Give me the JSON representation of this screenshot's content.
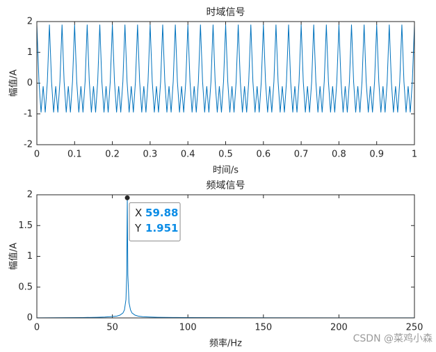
{
  "chart_data": [
    {
      "type": "line",
      "title": "时域信号",
      "xlabel": "时间/s",
      "ylabel": "幅值/A",
      "xlim": [
        0,
        1
      ],
      "ylim": [
        -2,
        2
      ],
      "xticks": [
        0,
        0.1,
        0.2,
        0.3,
        0.4,
        0.5,
        0.6,
        0.7,
        0.8,
        0.9,
        1
      ],
      "yticks": [
        -2,
        -1,
        0,
        1,
        2
      ],
      "x": [
        0,
        0.0056,
        0.0111,
        0.0167,
        0.0222,
        0.0278,
        0.0333,
        0.0389,
        0.0444,
        0.05,
        0.0556,
        0.0611,
        0.0667,
        0.0722,
        0.0778,
        0.0833,
        0.0889,
        0.0944,
        0.1,
        0.1056,
        0.1111,
        0.1167,
        0.1222,
        0.1278,
        0.1333,
        0.1389,
        0.1444,
        0.15,
        0.1556,
        0.1611,
        0.1667,
        0.1722,
        0.1778,
        0.1833,
        0.1889,
        0.1944,
        0.2,
        0.2056,
        0.2111,
        0.2167,
        0.2222,
        0.2278,
        0.2333,
        0.2389,
        0.2444,
        0.25,
        0.2556,
        0.2611,
        0.2667,
        0.2722,
        0.2778,
        0.2833,
        0.2889,
        0.2944,
        0.3,
        0.3056,
        0.3111,
        0.3167,
        0.3222,
        0.3278,
        0.3333,
        0.3389,
        0.3444,
        0.35,
        0.3556,
        0.3611,
        0.3667,
        0.3722,
        0.3778,
        0.3833,
        0.3889,
        0.3944,
        0.4,
        0.4056,
        0.4111,
        0.4167,
        0.4222,
        0.4278,
        0.4333,
        0.4389,
        0.4444,
        0.45,
        0.4556,
        0.4611,
        0.4667,
        0.4722,
        0.4778,
        0.4833,
        0.4889,
        0.4944,
        0.5,
        0.5056,
        0.5111,
        0.5167,
        0.5222,
        0.5278,
        0.5333,
        0.5389,
        0.5444,
        0.55,
        0.5556,
        0.5611,
        0.5667,
        0.5722,
        0.5778,
        0.5833,
        0.5889,
        0.5944,
        0.6,
        0.6056,
        0.6111,
        0.6167,
        0.6222,
        0.6278,
        0.6333,
        0.6389,
        0.6444,
        0.65,
        0.6556,
        0.6611,
        0.6667,
        0.6722,
        0.6778,
        0.6833,
        0.6889,
        0.6944,
        0.7,
        0.7056,
        0.7111,
        0.7167,
        0.7222,
        0.7278,
        0.7333,
        0.7389,
        0.7444,
        0.75,
        0.7556,
        0.7611,
        0.7667,
        0.7722,
        0.7778,
        0.7833,
        0.7889,
        0.7944,
        0.8,
        0.8056,
        0.8111,
        0.8167,
        0.8222,
        0.8278,
        0.8333,
        0.8389,
        0.8444,
        0.85,
        0.8556,
        0.8611,
        0.8667,
        0.8722,
        0.8778,
        0.8833,
        0.8889,
        0.8944,
        0.9,
        0.9056,
        0.9111,
        0.9167,
        0.9222,
        0.9278,
        0.9333,
        0.9389,
        0.9444,
        0.95,
        0.9556,
        0.9611,
        0.9667,
        0.9722,
        0.9778,
        0.9833,
        0.9889,
        0.9944,
        1
      ],
      "series": [
        {
          "color": "#0072bd",
          "values": [
            1.9,
            0.05,
            -0.95,
            -0.1,
            -0.95,
            0.05,
            1.9,
            0.05,
            -0.95,
            -0.1,
            -0.95,
            0.05,
            1.9,
            0.05,
            -0.95,
            -0.1,
            -0.95,
            0.05,
            1.9,
            0.05,
            -0.95,
            -0.1,
            -0.95,
            0.05,
            1.9,
            0.05,
            -0.95,
            -0.1,
            -0.95,
            0.05,
            1.9,
            0.05,
            -0.95,
            -0.1,
            -0.95,
            0.05,
            1.9,
            0.05,
            -0.95,
            -0.1,
            -0.95,
            0.05,
            1.9,
            0.05,
            -0.95,
            -0.1,
            -0.95,
            0.05,
            1.9,
            0.05,
            -0.95,
            -0.1,
            -0.95,
            0.05,
            1.9,
            0.05,
            -0.95,
            -0.1,
            -0.95,
            0.05,
            1.9,
            0.05,
            -0.95,
            -0.1,
            -0.95,
            0.05,
            1.9,
            0.05,
            -0.95,
            -0.1,
            -0.95,
            0.05,
            1.9,
            0.05,
            -0.95,
            -0.1,
            -0.95,
            0.05,
            1.9,
            0.05,
            -0.95,
            -0.1,
            -0.95,
            0.05,
            1.9,
            0.05,
            -0.95,
            -0.1,
            -0.95,
            0.05,
            1.9,
            0.05,
            -0.95,
            -0.1,
            -0.95,
            0.05,
            1.9,
            0.05,
            -0.95,
            -0.1,
            -0.95,
            0.05,
            1.9,
            0.05,
            -0.95,
            -0.1,
            -0.95,
            0.05,
            1.9,
            0.05,
            -0.95,
            -0.1,
            -0.95,
            0.05,
            1.9,
            0.05,
            -0.95,
            -0.1,
            -0.95,
            0.05,
            1.9,
            0.05,
            -0.95,
            -0.1,
            -0.95,
            0.05,
            1.9,
            0.05,
            -0.95,
            -0.1,
            -0.95,
            0.05,
            1.9,
            0.05,
            -0.95,
            -0.1,
            -0.95,
            0.05,
            1.9,
            0.05,
            -0.95,
            -0.1,
            -0.95,
            0.05,
            1.9,
            0.05,
            -0.95,
            -0.1,
            -0.95,
            0.05,
            1.9,
            0.05,
            -0.95,
            -0.1,
            -0.95,
            0.05,
            1.9,
            0.05,
            -0.95,
            -0.1,
            -0.95,
            0.05,
            1.9,
            0.05,
            -0.95,
            -0.1,
            -0.95,
            0.05,
            1.9,
            0.05,
            -0.95,
            -0.1,
            -0.95,
            0.05,
            1.9,
            0.05,
            -0.95,
            -0.1,
            -0.95,
            0.05,
            1.9
          ]
        }
      ]
    },
    {
      "type": "line",
      "title": "频域信号",
      "xlabel": "频率/Hz",
      "ylabel": "幅值/A",
      "xlim": [
        0,
        250
      ],
      "ylim": [
        0,
        2
      ],
      "xticks": [
        0,
        50,
        100,
        150,
        200,
        250
      ],
      "yticks": [
        0,
        0.5,
        1,
        1.5,
        2
      ],
      "x": [
        0,
        10,
        20,
        30,
        40,
        45,
        50,
        53,
        55,
        57,
        58,
        59,
        59.5,
        59.88,
        60.25,
        61,
        62,
        63,
        65,
        67,
        70,
        75,
        80,
        90,
        100,
        125,
        150,
        200,
        250
      ],
      "series": [
        {
          "color": "#0072bd",
          "values": [
            0.002,
            0.003,
            0.004,
            0.006,
            0.01,
            0.014,
            0.022,
            0.03,
            0.045,
            0.08,
            0.13,
            0.3,
            0.7,
            1.951,
            0.7,
            0.25,
            0.13,
            0.08,
            0.045,
            0.03,
            0.02,
            0.014,
            0.01,
            0.007,
            0.005,
            0.004,
            0.003,
            0.002,
            0.002
          ]
        }
      ],
      "datatip": {
        "x_label": "X",
        "x": 59.88,
        "y_label": "Y",
        "y": 1.951
      }
    }
  ],
  "watermark": "CSDN @菜鸡小森"
}
